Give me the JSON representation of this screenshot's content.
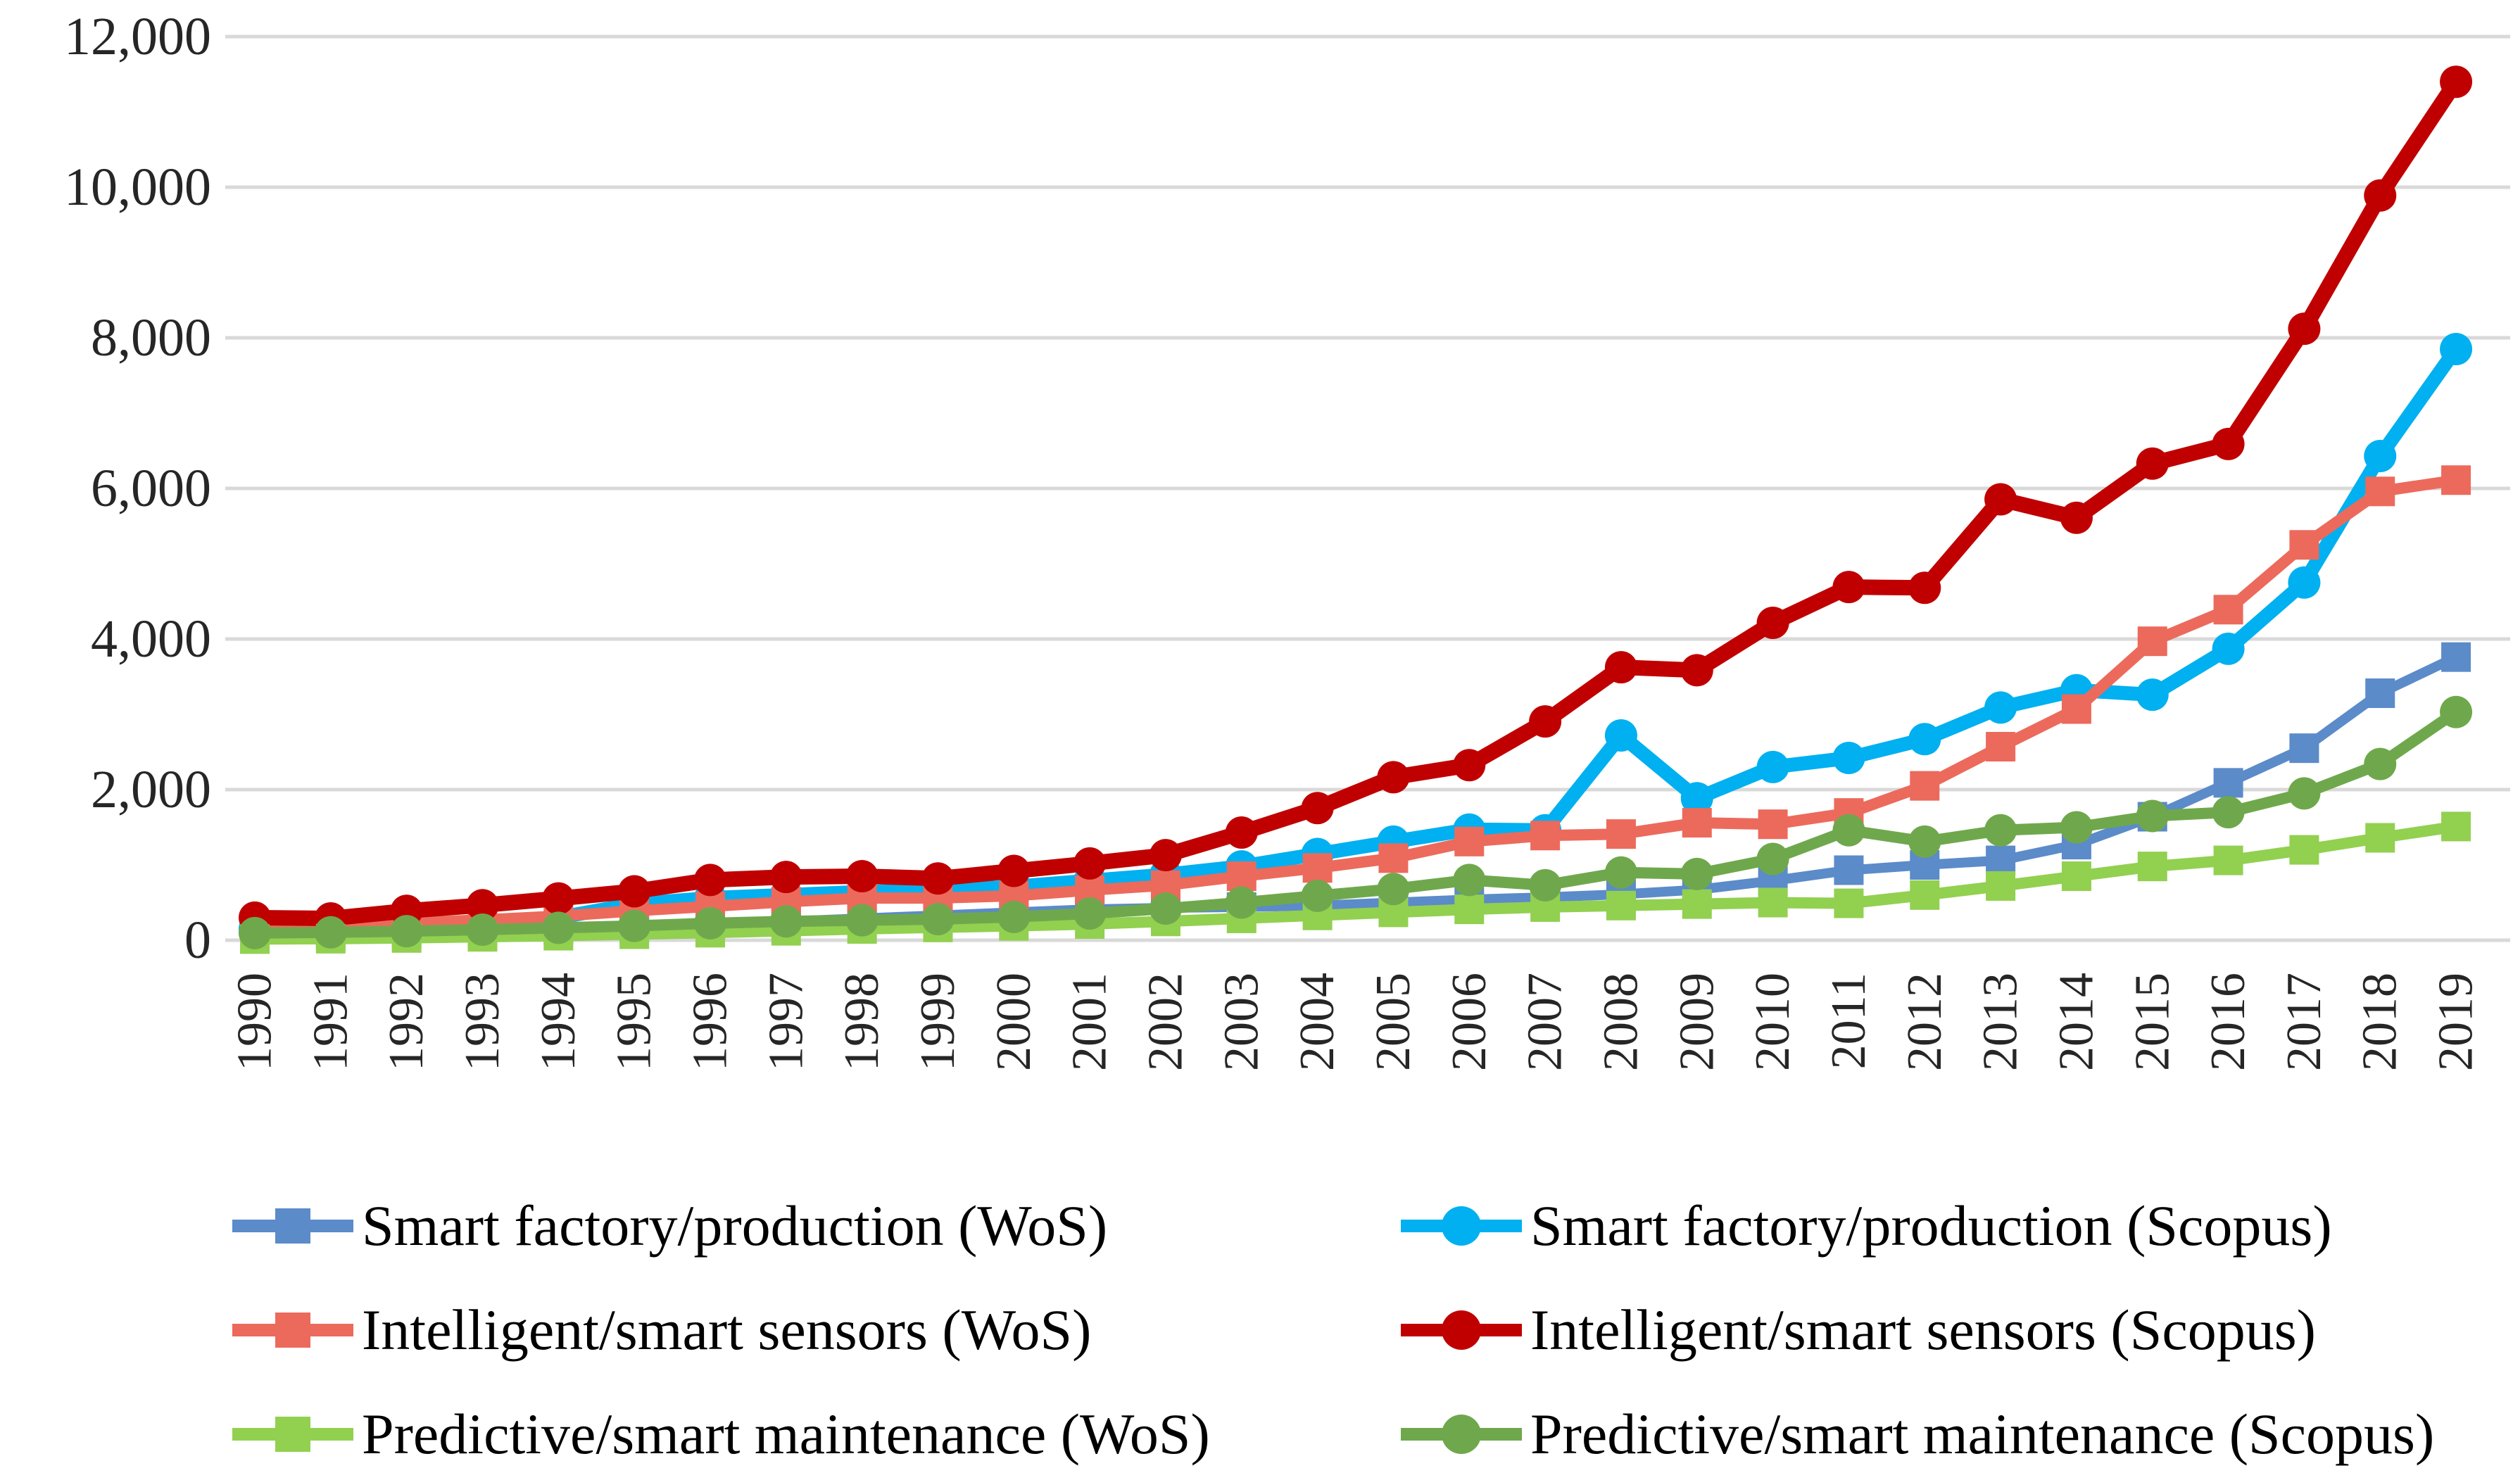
{
  "figure": {
    "background_color": "#FFFFFF",
    "grid_color": "#D9D9D9",
    "axis_text_color": "#262626"
  },
  "chart_data": {
    "type": "line",
    "title": "",
    "xlabel": "",
    "ylabel": "",
    "grid": true,
    "legend_position": "bottom",
    "x": [
      1990,
      1991,
      1992,
      1993,
      1994,
      1995,
      1996,
      1997,
      1998,
      1999,
      2000,
      2001,
      2002,
      2003,
      2004,
      2005,
      2006,
      2007,
      2008,
      2009,
      2010,
      2011,
      2012,
      2013,
      2014,
      2015,
      2016,
      2017,
      2018,
      2019
    ],
    "y_axis": {
      "min": 0,
      "max": 12000,
      "tick_step": 2000,
      "ticks": [
        0,
        2000,
        4000,
        6000,
        8000,
        10000,
        12000
      ],
      "tick_labels": [
        "0",
        "2,000",
        "4,000",
        "6,000",
        "8,000",
        "10,000",
        "12,000"
      ]
    },
    "series": [
      {
        "id": "wos_factory",
        "name": "Smart factory/production (WoS)",
        "database": "WoS",
        "color": "#5B8BC9",
        "marker": "square",
        "values": [
          70,
          75,
          90,
          110,
          140,
          170,
          210,
          250,
          290,
          330,
          370,
          410,
          430,
          440,
          460,
          500,
          540,
          570,
          610,
          670,
          790,
          930,
          1000,
          1060,
          1270,
          1640,
          2090,
          2550,
          3280,
          3760
        ]
      },
      {
        "id": "scopus_factory",
        "name": "Smart factory/production (Scopus)",
        "database": "Scopus",
        "color": "#00B0F0",
        "marker": "circle",
        "values": [
          150,
          155,
          195,
          240,
          300,
          480,
          560,
          600,
          640,
          660,
          710,
          790,
          870,
          980,
          1145,
          1310,
          1470,
          1460,
          2720,
          1885,
          2300,
          2420,
          2670,
          3090,
          3320,
          3260,
          3870,
          4750,
          6430,
          7850
        ]
      },
      {
        "id": "wos_sensors",
        "name": "Intelligent/smart sensors (WoS)",
        "database": "WoS",
        "color": "#EC6A5C",
        "marker": "square",
        "values": [
          180,
          190,
          230,
          270,
          320,
          390,
          450,
          510,
          560,
          560,
          590,
          665,
          730,
          850,
          960,
          1090,
          1310,
          1390,
          1410,
          1560,
          1540,
          1690,
          2050,
          2570,
          3070,
          3970,
          4390,
          5250,
          5960,
          6110
        ]
      },
      {
        "id": "scopus_sensors",
        "name": "Intelligent/smart sensors (Scopus)",
        "database": "Scopus",
        "color": "#C00000",
        "marker": "circle",
        "values": [
          300,
          290,
          390,
          465,
          555,
          650,
          800,
          840,
          850,
          820,
          920,
          1020,
          1130,
          1430,
          1755,
          2165,
          2325,
          2905,
          3625,
          3585,
          4215,
          4690,
          4680,
          5855,
          5610,
          6330,
          6590,
          8120,
          9890,
          11400
        ]
      },
      {
        "id": "wos_maintenance",
        "name": "Predictive/smart maintenance (WoS)",
        "database": "WoS",
        "color": "#92D050",
        "marker": "square",
        "values": [
          15,
          20,
          30,
          45,
          60,
          80,
          100,
          125,
          150,
          170,
          190,
          215,
          250,
          290,
          330,
          370,
          410,
          440,
          460,
          480,
          500,
          490,
          600,
          720,
          850,
          980,
          1060,
          1200,
          1360,
          1510
        ]
      },
      {
        "id": "scopus_maintenance",
        "name": "Predictive/smart maintenance (Scopus)",
        "database": "Scopus",
        "color": "#6FA84C",
        "marker": "circle",
        "values": [
          95,
          105,
          120,
          140,
          165,
          190,
          225,
          250,
          265,
          280,
          310,
          355,
          420,
          500,
          590,
          680,
          800,
          730,
          900,
          880,
          1080,
          1460,
          1310,
          1460,
          1500,
          1650,
          1700,
          1950,
          2340,
          3030
        ]
      }
    ]
  },
  "legend": {
    "columns": [
      {
        "name": "wos-column",
        "series_indexes": [
          0,
          2,
          4
        ]
      },
      {
        "name": "scopus-column",
        "series_indexes": [
          1,
          3,
          5
        ]
      }
    ]
  }
}
